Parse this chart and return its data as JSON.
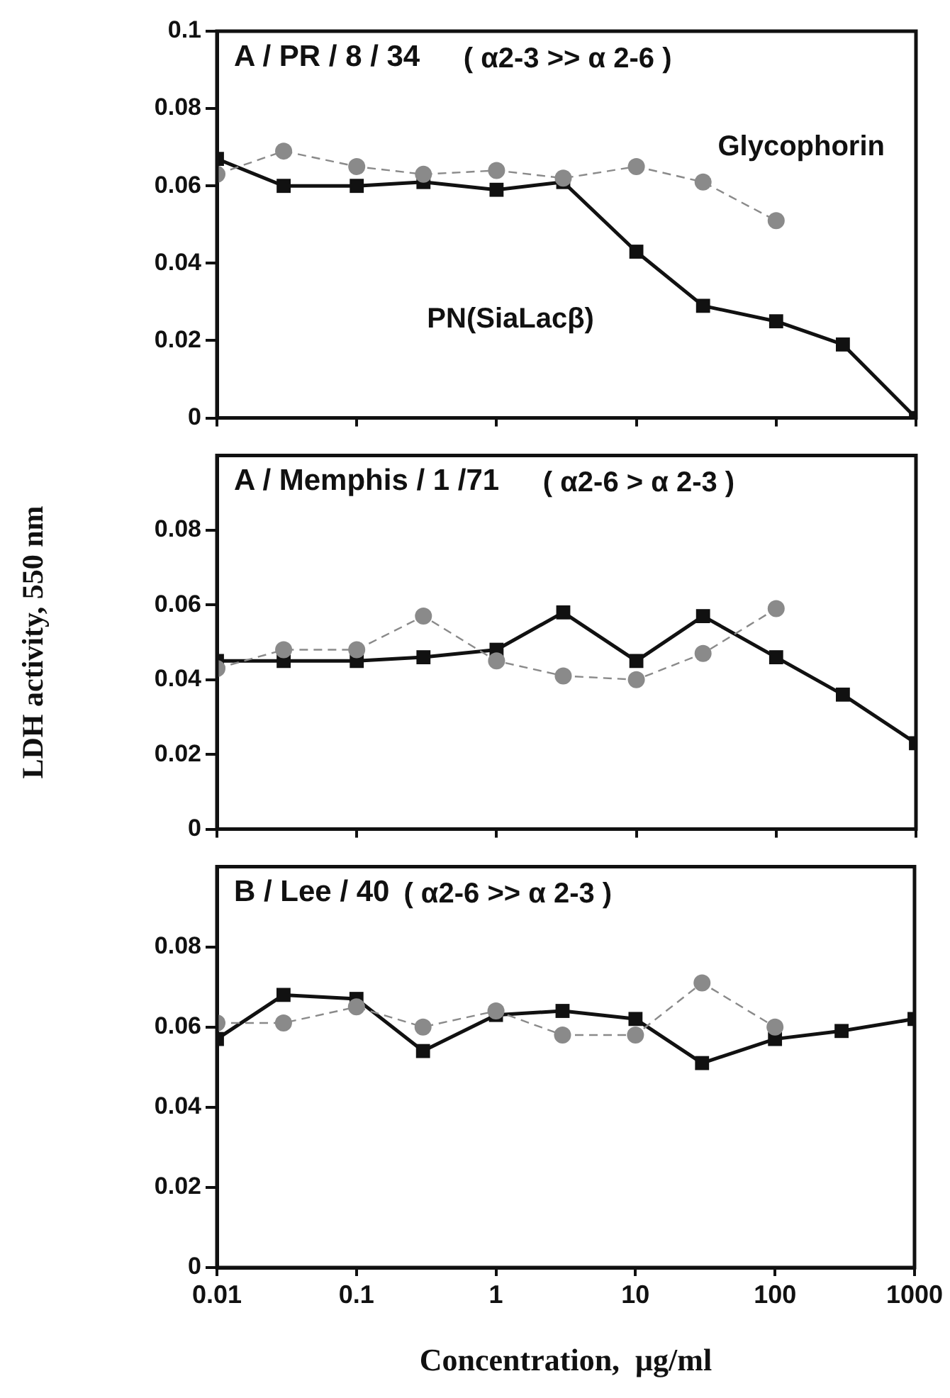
{
  "chart_data": [
    {
      "type": "line",
      "title": "A / PR / 8 / 34",
      "subtitle": "( α2-3 >> α 2-6 )",
      "x": [
        0.01,
        0.03,
        0.1,
        0.3,
        1,
        3,
        10,
        30,
        100,
        300,
        1000
      ],
      "series": [
        {
          "name": "Glycophorin",
          "color": "#8a8a8a",
          "marker": "circle",
          "line_style": "dashed",
          "values": [
            0.063,
            0.069,
            0.065,
            0.063,
            0.064,
            0.062,
            0.065,
            0.061,
            0.051,
            null,
            null
          ]
        },
        {
          "name": "PN(SiaLacβ)",
          "color": "#111111",
          "marker": "square",
          "line_style": "solid",
          "values": [
            0.067,
            0.06,
            0.06,
            0.061,
            0.059,
            0.061,
            0.043,
            0.029,
            0.025,
            0.019,
            0.0
          ]
        }
      ],
      "log": "x",
      "xlim": [
        0.01,
        1000
      ],
      "xticks": [
        0.01,
        0.1,
        1,
        10,
        100,
        1000
      ],
      "ylim": [
        0,
        0.1
      ],
      "yticks": [
        0,
        0.02,
        0.04,
        0.06,
        0.08,
        0.1
      ],
      "tick_labels": "y",
      "grid": false,
      "legend": false
    },
    {
      "type": "line",
      "title": "A / Memphis / 1 /71",
      "subtitle": "( α2-6 > α 2-3 )",
      "ylabel": "LDH activity, 550 nm",
      "x": [
        0.01,
        0.03,
        0.1,
        0.3,
        1,
        3,
        10,
        30,
        100,
        300,
        1000
      ],
      "series": [
        {
          "color": "#8a8a8a",
          "marker": "circle",
          "line_style": "dashed",
          "values": [
            0.043,
            0.048,
            0.048,
            0.057,
            0.045,
            0.041,
            0.04,
            0.047,
            0.059,
            null,
            null
          ]
        },
        {
          "color": "#111111",
          "marker": "square",
          "line_style": "solid",
          "values": [
            0.045,
            0.045,
            0.045,
            0.046,
            0.048,
            0.058,
            0.045,
            0.057,
            0.046,
            0.036,
            0.023
          ]
        }
      ],
      "log": "x",
      "xlim": [
        0.01,
        1000
      ],
      "xticks": [
        0.01,
        0.1,
        1,
        10,
        100,
        1000
      ],
      "ylim": [
        0,
        0.1
      ],
      "yticks": [
        0,
        0.02,
        0.04,
        0.06,
        0.08
      ],
      "tick_labels": "y",
      "grid": false,
      "legend": false
    },
    {
      "type": "line",
      "title": "B / Lee / 40",
      "subtitle": "( α2-6 >> α 2-3 )",
      "xlabel": "Concentration,  μg/ml",
      "x": [
        0.01,
        0.03,
        0.1,
        0.3,
        1,
        3,
        10,
        30,
        100,
        300,
        1000
      ],
      "series": [
        {
          "color": "#8a8a8a",
          "marker": "circle",
          "line_style": "dashed",
          "values": [
            0.061,
            0.061,
            0.065,
            0.06,
            0.064,
            0.058,
            0.058,
            0.071,
            0.06,
            null,
            null
          ]
        },
        {
          "color": "#111111",
          "marker": "square",
          "line_style": "solid",
          "values": [
            0.057,
            0.068,
            0.067,
            0.054,
            0.063,
            0.064,
            0.062,
            0.051,
            0.057,
            0.059,
            0.062
          ]
        }
      ],
      "log": "x",
      "xlim": [
        0.01,
        1000
      ],
      "xticks": [
        0.01,
        0.1,
        1,
        10,
        100,
        1000
      ],
      "ylim": [
        0,
        0.1
      ],
      "yticks": [
        0,
        0.02,
        0.04,
        0.06,
        0.08
      ],
      "grid": false,
      "legend": false
    }
  ]
}
